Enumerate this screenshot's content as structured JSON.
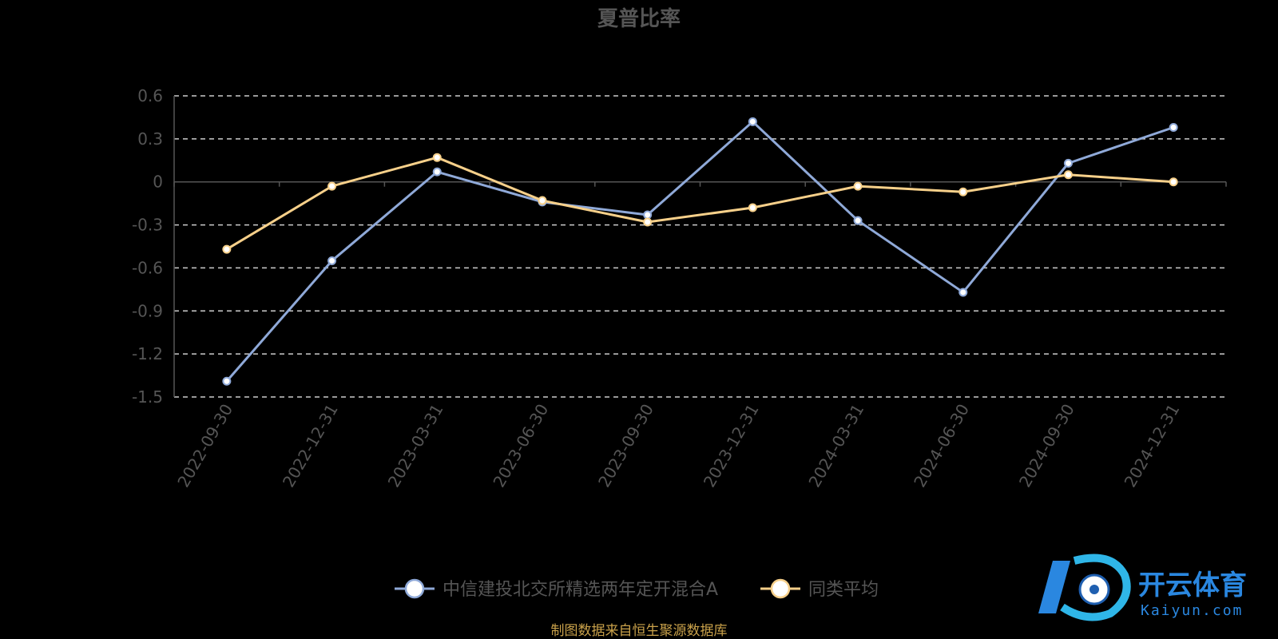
{
  "chart_data": {
    "type": "line",
    "title": "夏普比率",
    "categories": [
      "2022-09-30",
      "2022-12-31",
      "2023-03-31",
      "2023-06-30",
      "2023-09-30",
      "2023-12-31",
      "2024-03-31",
      "2024-06-30",
      "2024-09-30",
      "2024-12-31"
    ],
    "series": [
      {
        "name": "中信建投北交所精选两年定开混合A",
        "color": "#8fa9d8",
        "values": [
          -1.39,
          -0.55,
          0.07,
          -0.14,
          -0.23,
          0.42,
          -0.27,
          -0.77,
          0.13,
          0.38
        ]
      },
      {
        "name": "同类平均",
        "color": "#f7d08a",
        "values": [
          -0.47,
          -0.03,
          0.17,
          -0.13,
          -0.28,
          -0.18,
          -0.03,
          -0.07,
          0.05,
          0.0
        ]
      }
    ],
    "yticks": [
      "0.6",
      "0.3",
      "0",
      "-0.3",
      "-0.6",
      "-0.9",
      "-1.2",
      "-1.5"
    ],
    "ylim": [
      -1.5,
      0.6
    ],
    "grid": true,
    "legend_position": "bottom"
  },
  "source_note": "制图数据来自恒生聚源数据库",
  "watermark": {
    "brand": "开云体育",
    "sub": "Kaiyun.com"
  }
}
